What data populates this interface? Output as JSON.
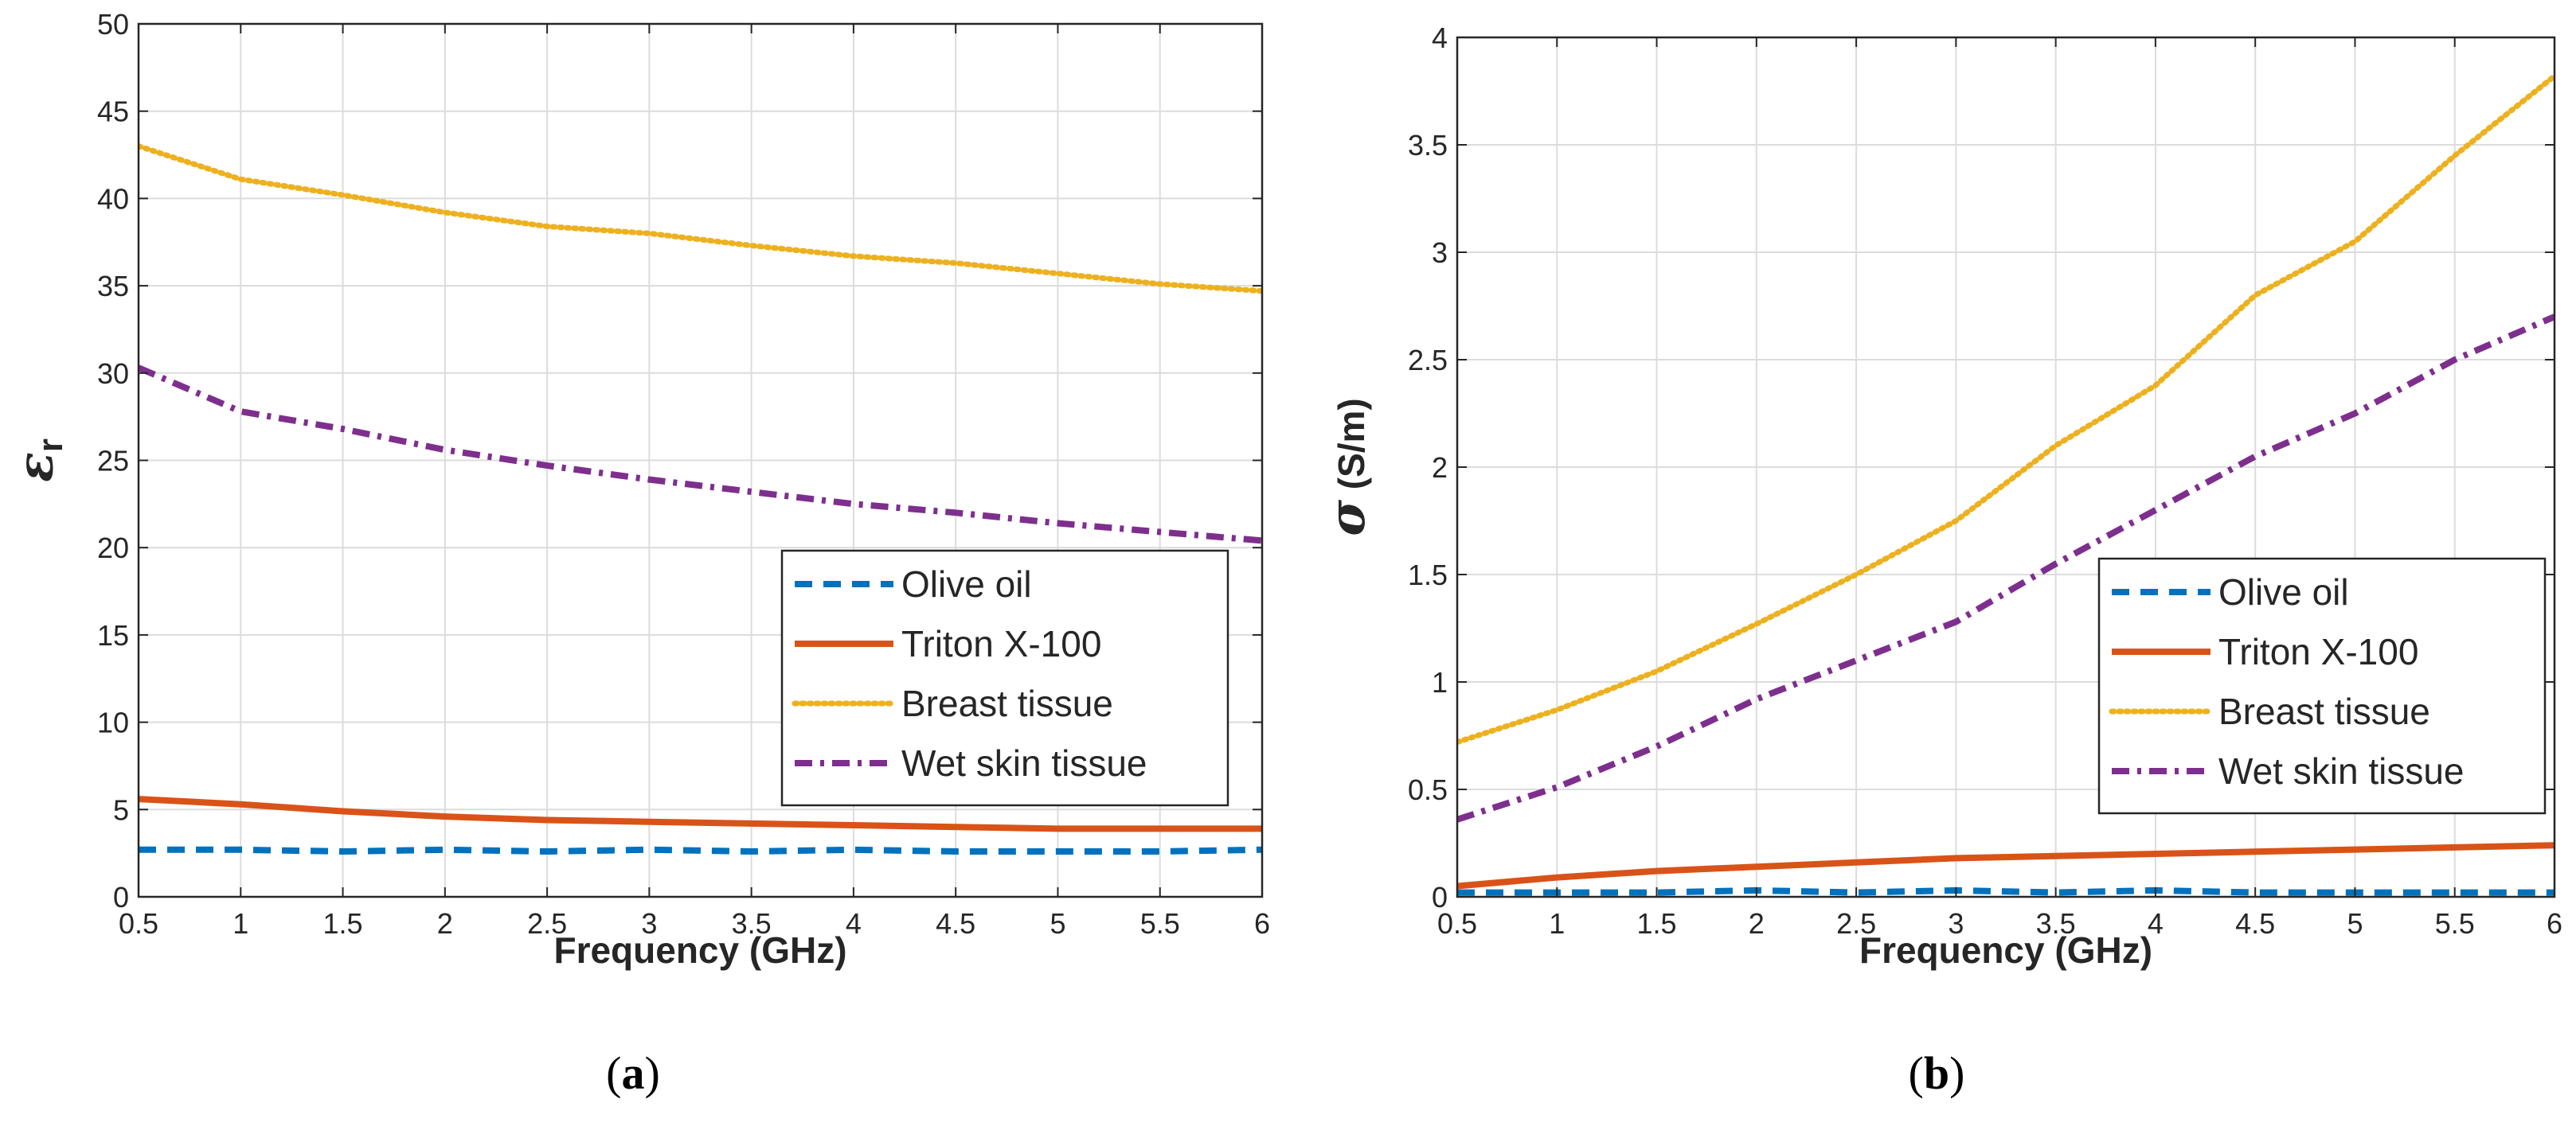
{
  "chart_data": [
    {
      "type": "line",
      "panel": "a",
      "caption": {
        "open": "(",
        "letter": "a",
        "close": ")"
      },
      "xlabel": "Frequency (GHz)",
      "ylabel": {
        "symbol": "ε",
        "sub": "r"
      },
      "xlim": [
        0.5,
        6
      ],
      "ylim": [
        0,
        50
      ],
      "xticks": [
        0.5,
        1,
        1.5,
        2,
        2.5,
        3,
        3.5,
        4,
        4.5,
        5,
        5.5,
        6
      ],
      "xtick_labels": [
        "0.5",
        "1",
        "1.5",
        "2",
        "2.5",
        "3",
        "3.5",
        "4",
        "4.5",
        "5",
        "5.5",
        "6"
      ],
      "yticks": [
        0,
        5,
        10,
        15,
        20,
        25,
        30,
        35,
        40,
        45,
        50
      ],
      "ytick_labels": [
        "0",
        "5",
        "10",
        "15",
        "20",
        "25",
        "30",
        "35",
        "40",
        "45",
        "50"
      ],
      "grid": true,
      "legend_position": "lower-right",
      "x": [
        0.5,
        1,
        1.5,
        2,
        2.5,
        3,
        3.5,
        4,
        4.5,
        5,
        5.5,
        6
      ],
      "series": [
        {
          "name": "Olive oil",
          "color": "#0072BD",
          "style": "dashed",
          "values": [
            2.7,
            2.7,
            2.6,
            2.7,
            2.6,
            2.7,
            2.6,
            2.7,
            2.6,
            2.6,
            2.6,
            2.7
          ]
        },
        {
          "name": "Triton X-100",
          "color": "#D95319",
          "style": "solid",
          "values": [
            5.6,
            5.3,
            4.9,
            4.6,
            4.4,
            4.3,
            4.2,
            4.1,
            4.0,
            3.9,
            3.9,
            3.9
          ]
        },
        {
          "name": "Breast tissue",
          "color": "#EDB120",
          "style": "dotted",
          "values": [
            43,
            41.1,
            40.2,
            39.2,
            38.4,
            38,
            37.3,
            36.7,
            36.3,
            35.7,
            35.1,
            34.7
          ]
        },
        {
          "name": "Wet skin tissue",
          "color": "#7E2F8E",
          "style": "dashdot",
          "values": [
            30.3,
            27.8,
            26.8,
            25.6,
            24.7,
            23.9,
            23.2,
            22.5,
            22.0,
            21.4,
            20.9,
            20.4
          ]
        }
      ]
    },
    {
      "type": "line",
      "panel": "b",
      "caption": {
        "open": "(",
        "letter": "b",
        "close": ")"
      },
      "xlabel": "Frequency (GHz)",
      "ylabel": {
        "symbol": "σ",
        "sub": " (S/m)"
      },
      "xlim": [
        0.5,
        6
      ],
      "ylim": [
        0,
        4
      ],
      "xticks": [
        0.5,
        1,
        1.5,
        2,
        2.5,
        3,
        3.5,
        4,
        4.5,
        5,
        5.5,
        6
      ],
      "xtick_labels": [
        "0.5",
        "1",
        "1.5",
        "2",
        "2.5",
        "3",
        "3.5",
        "4",
        "4.5",
        "5",
        "5.5",
        "6"
      ],
      "yticks": [
        0,
        0.5,
        1,
        1.5,
        2,
        2.5,
        3,
        3.5,
        4
      ],
      "ytick_labels": [
        "0",
        "0.5",
        "1",
        "1.5",
        "2",
        "2.5",
        "3",
        "3.5",
        "4"
      ],
      "grid": true,
      "legend_position": "lower-right",
      "x": [
        0.5,
        1,
        1.5,
        2,
        2.5,
        3,
        3.5,
        4,
        4.5,
        5,
        5.5,
        6
      ],
      "series": [
        {
          "name": "Olive oil",
          "color": "#0072BD",
          "style": "dashed",
          "values": [
            0.02,
            0.02,
            0.02,
            0.03,
            0.02,
            0.03,
            0.02,
            0.03,
            0.02,
            0.02,
            0.02,
            0.02
          ]
        },
        {
          "name": "Triton X-100",
          "color": "#D95319",
          "style": "solid",
          "values": [
            0.05,
            0.09,
            0.12,
            0.14,
            0.16,
            0.18,
            0.19,
            0.2,
            0.21,
            0.22,
            0.23,
            0.24
          ]
        },
        {
          "name": "Breast tissue",
          "color": "#EDB120",
          "style": "dotted",
          "values": [
            0.72,
            0.87,
            1.05,
            1.27,
            1.5,
            1.75,
            2.1,
            2.38,
            2.8,
            3.05,
            3.45,
            3.82
          ]
        },
        {
          "name": "Wet skin tissue",
          "color": "#7E2F8E",
          "style": "dashdot",
          "values": [
            0.36,
            0.51,
            0.7,
            0.92,
            1.1,
            1.28,
            1.55,
            1.8,
            2.05,
            2.25,
            2.5,
            2.7
          ]
        }
      ]
    }
  ]
}
